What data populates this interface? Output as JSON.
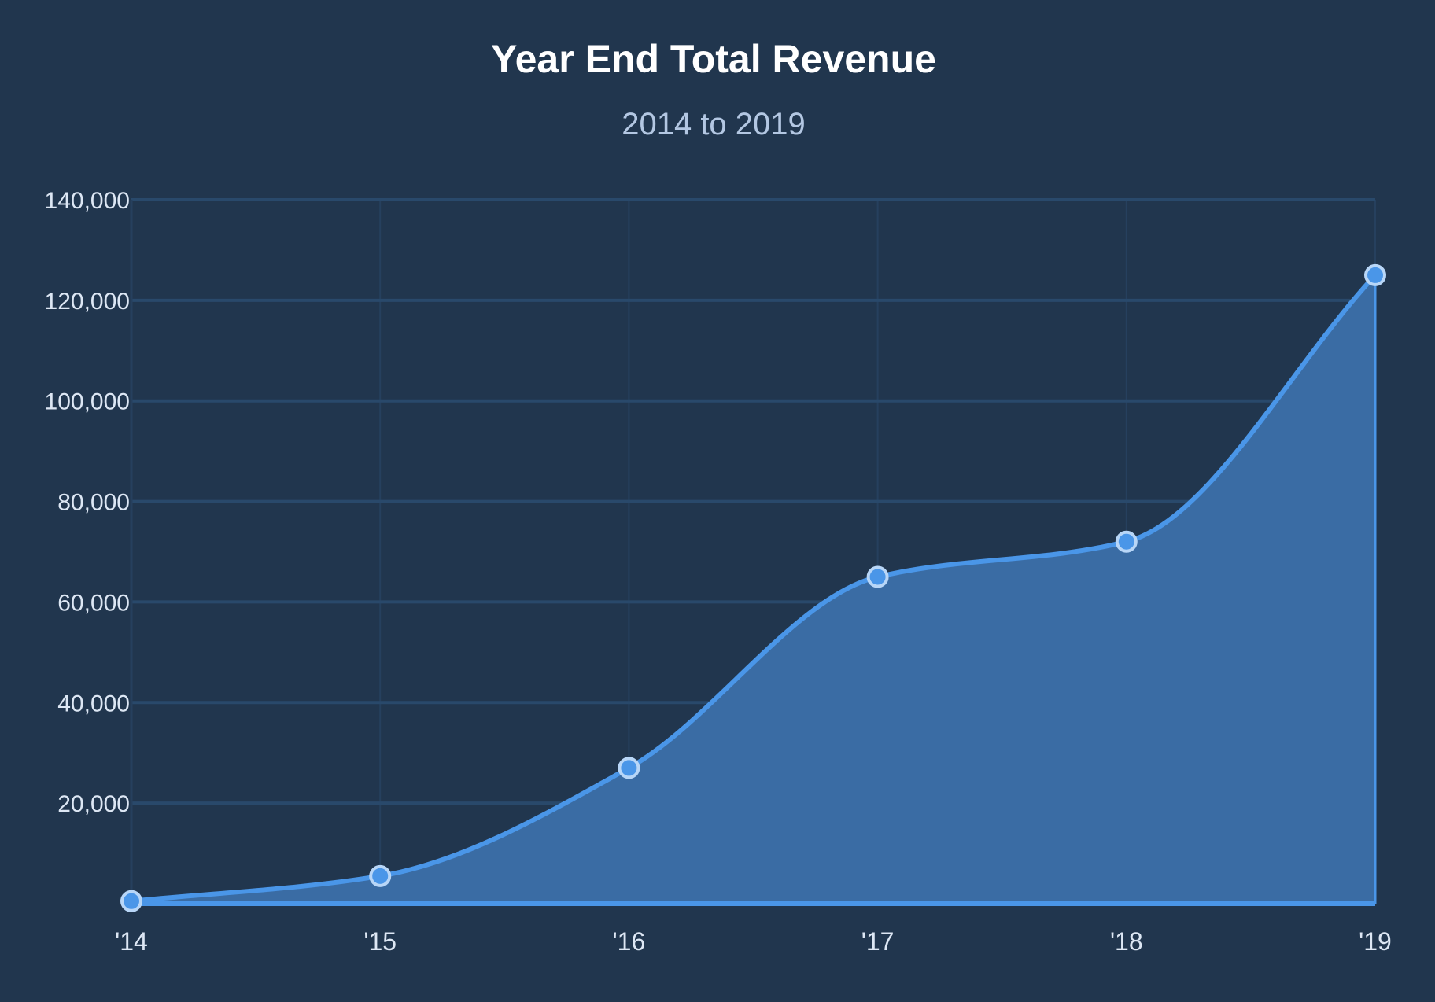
{
  "chart_data": {
    "type": "area",
    "title": "Year End Total Revenue",
    "subtitle": "2014 to 2019",
    "xlabel": "",
    "ylabel": "",
    "categories": [
      "'14",
      "'15",
      "'16",
      "'17",
      "'18",
      "'19"
    ],
    "values": [
      500,
      5500,
      27000,
      65000,
      72000,
      125000
    ],
    "ylim": [
      0,
      140000
    ],
    "yticks": [
      20000,
      40000,
      60000,
      80000,
      100000,
      120000,
      140000
    ],
    "ytick_labels": [
      "20,000",
      "40,000",
      "60,000",
      "80,000",
      "100,000",
      "120,000",
      "140,000"
    ],
    "grid": true,
    "legend": "none",
    "curve": "smooth",
    "colors": {
      "background": "#21364e",
      "line": "#4a96e8",
      "fill": "#3a6ca4",
      "marker_fill": "#4a96e8",
      "marker_stroke": "#b8d6f7",
      "grid": "#29496b"
    }
  }
}
